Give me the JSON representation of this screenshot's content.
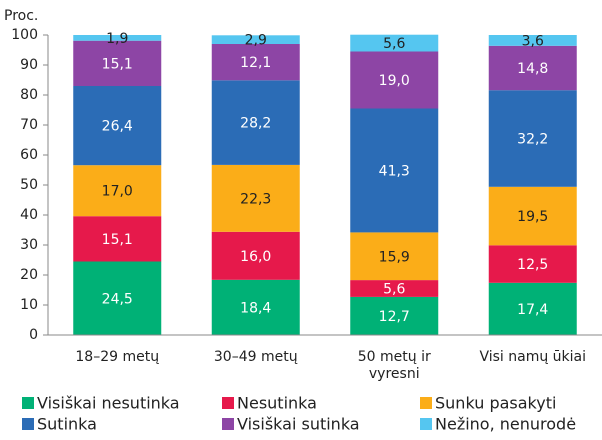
{
  "chart_data": {
    "type": "stacked_bar",
    "y_axis_label": "Proc.",
    "categories": [
      "18–29 metų",
      "30–49 metų",
      "50 metų ir vyresni",
      "Visi namų ūkiai"
    ],
    "series": [
      {
        "name": "Visiškai nesutinka",
        "color": "#00b176",
        "values": [
          24.5,
          18.4,
          12.7,
          17.4
        ],
        "value_labels": [
          "24,5",
          "18,4",
          "12,7",
          "17,4"
        ]
      },
      {
        "name": "Nesutinka",
        "color": "#e6194b",
        "values": [
          15.1,
          16.0,
          5.6,
          12.5
        ],
        "value_labels": [
          "15,1",
          "16,0",
          "5,6",
          "12,5"
        ]
      },
      {
        "name": "Sunku pasakyti",
        "color": "#fbad18",
        "values": [
          17.0,
          22.3,
          15.9,
          19.5
        ],
        "value_labels": [
          "17,0",
          "22,3",
          "15,9",
          "19,5"
        ]
      },
      {
        "name": "Sutinka",
        "color": "#2b6cb6",
        "values": [
          26.4,
          28.2,
          41.3,
          32.2
        ],
        "value_labels": [
          "26,4",
          "28,2",
          "41,3",
          "32,2"
        ]
      },
      {
        "name": "Visiškai sutinka",
        "color": "#8d45a5",
        "values": [
          15.1,
          12.1,
          19.0,
          14.8
        ],
        "value_labels": [
          "15,1",
          "12,1",
          "19,0",
          "14,8"
        ]
      },
      {
        "name": "Nežino, nenurodė",
        "color": "#55c6f0",
        "values": [
          1.9,
          2.9,
          5.6,
          3.6
        ],
        "value_labels": [
          "1,9",
          "2,9",
          "5,6",
          "3,6"
        ]
      }
    ],
    "ylim": [
      0,
      100
    ],
    "yticks": [
      0,
      10,
      20,
      30,
      40,
      50,
      60,
      70,
      80,
      90,
      100
    ],
    "grid": false
  }
}
